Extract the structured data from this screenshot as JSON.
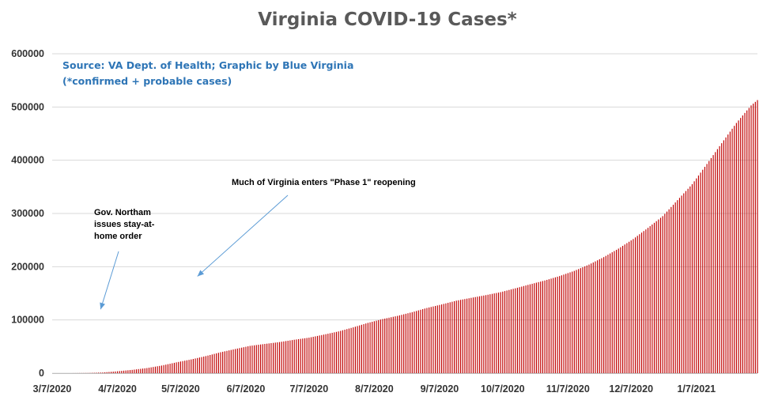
{
  "chart_data": {
    "type": "bar",
    "title": "Virginia COVID-19 Cases*",
    "source_lines": [
      "Source: VA Dept. of Health; Graphic by Blue Virginia",
      "(*confirmed + probable cases)"
    ],
    "xlabel": "",
    "ylabel": "",
    "ylim": [
      0,
      600000
    ],
    "yticks": [
      0,
      100000,
      200000,
      300000,
      400000,
      500000,
      600000
    ],
    "x_start": "2020-03-07",
    "x_end": "2021-02-05",
    "xtick_labels": [
      "3/7/2020",
      "4/7/2020",
      "5/7/2020",
      "6/7/2020",
      "7/7/2020",
      "8/7/2020",
      "9/7/2020",
      "10/7/2020",
      "11/7/2020",
      "12/7/2020",
      "1/7/2021"
    ],
    "xtick_dates": [
      "2020-03-07",
      "2020-04-07",
      "2020-05-07",
      "2020-06-07",
      "2020-07-07",
      "2020-08-07",
      "2020-09-07",
      "2020-10-07",
      "2020-11-07",
      "2020-12-07",
      "2021-01-07"
    ],
    "grid": true,
    "bar_color": "#c00000",
    "series": [
      {
        "points": [
          [
            "2020-03-17",
            60
          ],
          [
            "2020-03-24",
            300
          ],
          [
            "2020-03-31",
            1250
          ],
          [
            "2020-04-07",
            3600
          ],
          [
            "2020-04-14",
            6200
          ],
          [
            "2020-04-21",
            9600
          ],
          [
            "2020-04-28",
            14300
          ],
          [
            "2020-05-05",
            20300
          ],
          [
            "2020-05-12",
            25800
          ],
          [
            "2020-05-19",
            32100
          ],
          [
            "2020-05-26",
            39300
          ],
          [
            "2020-06-02",
            45400
          ],
          [
            "2020-06-09",
            51300
          ],
          [
            "2020-06-16",
            54900
          ],
          [
            "2020-06-23",
            58400
          ],
          [
            "2020-06-30",
            62800
          ],
          [
            "2020-07-07",
            66700
          ],
          [
            "2020-07-14",
            72400
          ],
          [
            "2020-07-21",
            78400
          ],
          [
            "2020-07-28",
            86100
          ],
          [
            "2020-08-04",
            94500
          ],
          [
            "2020-08-11",
            101700
          ],
          [
            "2020-08-18",
            107600
          ],
          [
            "2020-08-25",
            114600
          ],
          [
            "2020-09-01",
            122500
          ],
          [
            "2020-09-08",
            129100
          ],
          [
            "2020-09-15",
            136200
          ],
          [
            "2020-09-22",
            141500
          ],
          [
            "2020-09-29",
            146600
          ],
          [
            "2020-10-06",
            152200
          ],
          [
            "2020-10-13",
            159400
          ],
          [
            "2020-10-20",
            166900
          ],
          [
            "2020-10-27",
            174100
          ],
          [
            "2020-11-03",
            182400
          ],
          [
            "2020-11-10",
            192200
          ],
          [
            "2020-11-17",
            204000
          ],
          [
            "2020-11-24",
            218000
          ],
          [
            "2020-12-01",
            234000
          ],
          [
            "2020-12-08",
            252000
          ],
          [
            "2020-12-15",
            273000
          ],
          [
            "2020-12-22",
            295000
          ],
          [
            "2020-12-29",
            325000
          ],
          [
            "2021-01-05",
            355000
          ],
          [
            "2021-01-12",
            393000
          ],
          [
            "2021-01-19",
            432000
          ],
          [
            "2021-01-26",
            470000
          ],
          [
            "2021-02-02",
            503000
          ],
          [
            "2021-02-05",
            513000
          ]
        ]
      }
    ],
    "annotations": [
      {
        "lines": [
          "Gov. Northam",
          "issues stay-at-",
          "home order"
        ],
        "arrow_to_date": "2020-03-30",
        "arrow_to_value": 120000
      },
      {
        "lines": [
          "Much of Virginia enters \"Phase 1\" reopening"
        ],
        "arrow_to_date": "2020-05-15",
        "arrow_to_value": 182000
      }
    ]
  }
}
